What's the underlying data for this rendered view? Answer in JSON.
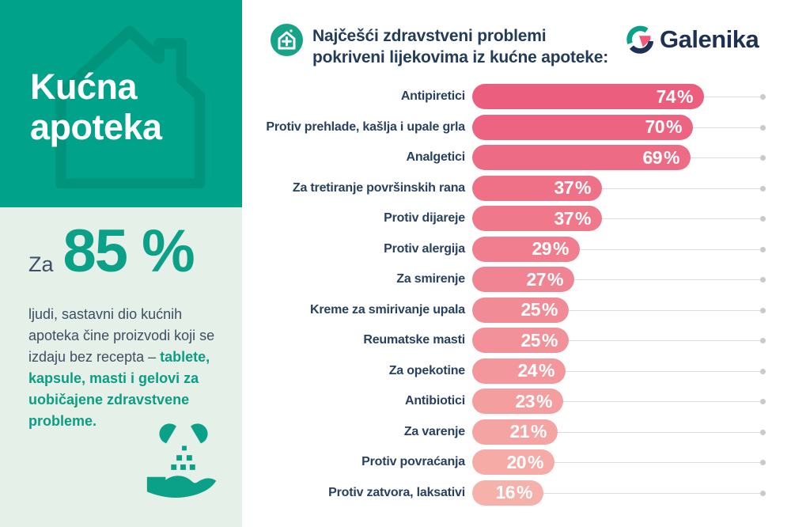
{
  "left_panel": {
    "title": "Kućna apoteka",
    "stat_prefix": "Za",
    "stat_value": "85 %",
    "paragraph_plain": "ljudi, sastavni dio kućnih apoteka čine proizvodi koji se izdaju bez recepta – ",
    "paragraph_highlight": "tablete, kapsule, masti i gelovi za uobičajene zdravstvene probleme.",
    "panel_bg_color": "#00a38a",
    "panel_icon": "house-outline-icon",
    "footer_icon": "hand-pills-icon",
    "mint_bg_color": "#e4f0e8",
    "accent_green": "#0ba189"
  },
  "header": {
    "icon": "house-plus-icon",
    "title_line1": "Najčešći zdravstveni problemi",
    "title_line2": "pokriveni lijekovima iz kućne apoteke:",
    "logo_icon": "galenika-g-icon",
    "logo_text": "Galenika"
  },
  "chart_data": {
    "type": "bar",
    "orientation": "horizontal",
    "title": "Najčešći zdravstveni problemi pokriveni lijekovima iz kućne apoteke",
    "unit": "%",
    "xlim": [
      0,
      100
    ],
    "categories": [
      "Antipiretici",
      "Protiv prehlade, kašlja i upale grla",
      "Analgetici",
      "Za tretiranje površinskih rana",
      "Protiv dijareje",
      "Protiv alergija",
      "Za smirenje",
      "Kreme za smirivanje upala",
      "Reumatske masti",
      "Za opekotine",
      "Antibiotici",
      "Za varenje",
      "Protiv povraćanja",
      "Protiv zatvora, laksativi"
    ],
    "values": [
      74,
      70,
      69,
      37,
      37,
      29,
      27,
      25,
      25,
      24,
      23,
      21,
      20,
      16
    ],
    "bar_color_start": "#eb5e7d",
    "bar_color_end": "#f7b1ab",
    "value_label_color": "#ffffff",
    "label_color": "#27415f",
    "track_color": "#dcdcdd",
    "dot_color": "#c9cacb",
    "legend": "none",
    "grid": "off"
  }
}
